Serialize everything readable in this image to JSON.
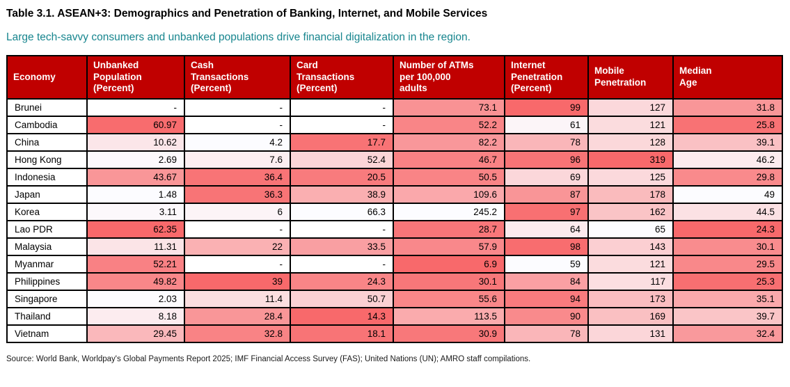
{
  "title": "Table 3.1. ASEAN+3: Demographics and Penetration of Banking, Internet, and Mobile Services",
  "subtitle": "Large tech-savvy consumers and unbanked populations drive financial digitalization in the region.",
  "source": "Source: World Bank, Worldpay's Global Payments Report 2025; IMF Financial Access Survey (FAS); United Nations (UN); AMRO staff compilations.",
  "colors": {
    "header_bg": "#C00000",
    "header_text": "#FFFFFF",
    "heat_red": "#F8696B",
    "heat_white": "#FCFCFF",
    "subtitle_text": "#17858E",
    "grid_border": "#000000",
    "cell_text": "#000000"
  },
  "chart_data": {
    "type": "table",
    "columns": [
      {
        "key": "economy",
        "label": "Economy",
        "label_lines": [
          "Economy"
        ],
        "heat": null
      },
      {
        "key": "unbanked_population_pct",
        "label": "Unbanked Population (Percent)",
        "label_lines": [
          "Unbanked",
          "Population",
          "(Percent)"
        ],
        "heat": {
          "min": 1.48,
          "max": 62.35,
          "red_end": "high"
        }
      },
      {
        "key": "cash_transactions_pct",
        "label": "Cash Transactions (Percent)",
        "label_lines": [
          "Cash",
          "Transactions",
          "(Percent)"
        ],
        "heat": {
          "min": 4.2,
          "max": 39,
          "red_end": "high"
        }
      },
      {
        "key": "card_transactions_pct",
        "label": "Card Transactions (Percent)",
        "label_lines": [
          "Card",
          "Transactions",
          "(Percent)"
        ],
        "heat": {
          "min": 14.3,
          "max": 66.3,
          "red_end": "low"
        }
      },
      {
        "key": "atms_per_100k_adults",
        "label": "Number of ATMs per 100,000 adults",
        "label_lines": [
          "Number of ATMs",
          "per 100,000",
          "adults"
        ],
        "heat": {
          "min": 6.9,
          "max": 245.2,
          "red_end": "low"
        }
      },
      {
        "key": "internet_penetration_pct",
        "label": "Internet Penetration (Percent)",
        "label_lines": [
          "Internet",
          "Penetration",
          "(Percent)"
        ],
        "heat": {
          "min": 59,
          "max": 99,
          "red_end": "high"
        }
      },
      {
        "key": "mobile_penetration",
        "label": "Mobile Penetration",
        "label_lines": [
          "Mobile",
          "Penetration"
        ],
        "heat": {
          "min": 65,
          "max": 319,
          "red_end": "high"
        }
      },
      {
        "key": "median_age",
        "label": "Median Age",
        "label_lines": [
          "Median",
          "Age"
        ],
        "heat": {
          "min": 24.3,
          "max": 49,
          "red_end": "low"
        }
      }
    ],
    "rows": [
      [
        "Brunei",
        "-",
        "-",
        "-",
        "73.1",
        "99",
        "127",
        "31.8"
      ],
      [
        "Cambodia",
        "60.97",
        "-",
        "-",
        "52.2",
        "61",
        "121",
        "25.8"
      ],
      [
        "China",
        "10.62",
        "4.2",
        "17.7",
        "82.2",
        "78",
        "128",
        "39.1"
      ],
      [
        "Hong Kong",
        "2.69",
        "7.6",
        "52.4",
        "46.7",
        "96",
        "319",
        "46.2"
      ],
      [
        "Indonesia",
        "43.67",
        "36.4",
        "20.5",
        "50.5",
        "69",
        "125",
        "29.8"
      ],
      [
        "Japan",
        "1.48",
        "36.3",
        "38.9",
        "109.6",
        "87",
        "178",
        "49"
      ],
      [
        "Korea",
        "3.11",
        "6",
        "66.3",
        "245.2",
        "97",
        "162",
        "44.5"
      ],
      [
        "Lao PDR",
        "62.35",
        "-",
        "-",
        "28.7",
        "64",
        "65",
        "24.3"
      ],
      [
        "Malaysia",
        "11.31",
        "22",
        "33.5",
        "57.9",
        "98",
        "143",
        "30.1"
      ],
      [
        "Myanmar",
        "52.21",
        "-",
        "-",
        "6.9",
        "59",
        "121",
        "29.5"
      ],
      [
        "Philippines",
        "49.82",
        "39",
        "24.3",
        "30.1",
        "84",
        "117",
        "25.3"
      ],
      [
        "Singapore",
        "2.03",
        "11.4",
        "50.7",
        "55.6",
        "94",
        "173",
        "35.1"
      ],
      [
        "Thailand",
        "8.18",
        "28.4",
        "14.3",
        "113.5",
        "90",
        "169",
        "39.7"
      ],
      [
        "Vietnam",
        "29.45",
        "32.8",
        "18.1",
        "30.9",
        "78",
        "131",
        "32.4"
      ]
    ]
  }
}
